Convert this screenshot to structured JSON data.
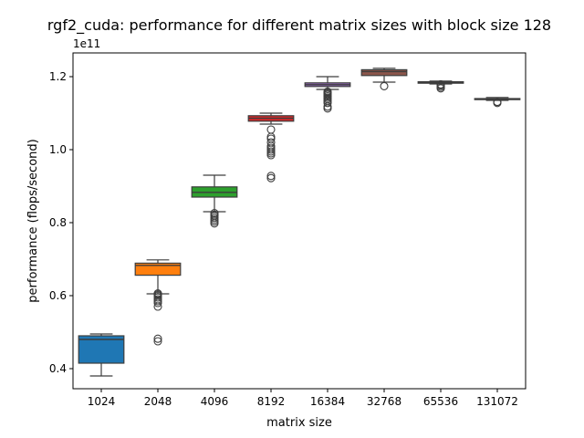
{
  "chart_data": {
    "type": "box",
    "title": "rgf2_cuda: performance for different matrix sizes with block size 128",
    "xlabel": "matrix size",
    "ylabel": "performance (flops/second)",
    "y_offset_text": "1e11",
    "y_scale": 100000000000.0,
    "ylim": [
      0.345,
      1.265
    ],
    "yticks": [
      0.4,
      0.6,
      0.8,
      1.0,
      1.2
    ],
    "ytick_labels": [
      "0.4",
      "0.6",
      "0.8",
      "1.0",
      "1.2"
    ],
    "grid": false,
    "categories": [
      "1024",
      "2048",
      "4096",
      "8192",
      "16384",
      "32768",
      "65536",
      "131072"
    ],
    "boxes": [
      {
        "category": "1024",
        "whisker_low": 0.38,
        "q1": 0.415,
        "median": 0.48,
        "q3": 0.49,
        "whisker_high": 0.495,
        "outliers": [],
        "color": "#1f77b4"
      },
      {
        "category": "2048",
        "whisker_low": 0.605,
        "q1": 0.656,
        "median": 0.683,
        "q3": 0.689,
        "whisker_high": 0.698,
        "outliers": [
          0.475,
          0.482,
          0.57,
          0.58,
          0.585,
          0.59,
          0.595,
          0.6,
          0.603,
          0.606
        ],
        "color": "#ff7f0e"
      },
      {
        "category": "4096",
        "whisker_low": 0.83,
        "q1": 0.87,
        "median": 0.883,
        "q3": 0.898,
        "whisker_high": 0.93,
        "outliers": [
          0.798,
          0.803,
          0.808,
          0.813,
          0.818,
          0.822,
          0.826
        ],
        "color": "#2ca02c"
      },
      {
        "category": "8192",
        "whisker_low": 1.07,
        "q1": 1.078,
        "median": 1.086,
        "q3": 1.093,
        "whisker_high": 1.1,
        "outliers": [
          0.922,
          0.928,
          0.985,
          0.99,
          0.995,
          1.0,
          1.005,
          1.01,
          1.02,
          1.03,
          1.035,
          1.055
        ],
        "color": "#d62728"
      },
      {
        "category": "16384",
        "whisker_low": 1.165,
        "q1": 1.173,
        "median": 1.178,
        "q3": 1.183,
        "whisker_high": 1.2,
        "outliers": [
          1.113,
          1.118,
          1.128,
          1.133,
          1.138,
          1.142,
          1.146,
          1.15,
          1.153,
          1.156,
          1.159
        ],
        "color": "#9467bd"
      },
      {
        "category": "32768",
        "whisker_low": 1.185,
        "q1": 1.203,
        "median": 1.214,
        "q3": 1.219,
        "whisker_high": 1.223,
        "outliers": [
          1.174
        ],
        "color": "#8c564b"
      },
      {
        "category": "65536",
        "whisker_low": 1.18,
        "q1": 1.182,
        "median": 1.184,
        "q3": 1.186,
        "whisker_high": 1.188,
        "outliers": [
          1.168,
          1.172,
          1.176,
          1.179
        ],
        "color": "#e377c2"
      },
      {
        "category": "131072",
        "whisker_low": 1.135,
        "q1": 1.137,
        "median": 1.138,
        "q3": 1.14,
        "whisker_high": 1.143,
        "outliers": [
          1.128,
          1.131
        ],
        "color": "#7f7f7f"
      }
    ]
  }
}
